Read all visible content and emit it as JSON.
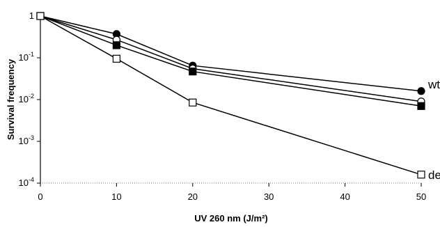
{
  "chart_data": {
    "type": "line",
    "title": "",
    "xlabel": "UV 260 nm (J/m²)",
    "ylabel": "Survival frequency",
    "x_scale": "linear",
    "y_scale": "log",
    "xlim": [
      0,
      50
    ],
    "ylim": [
      0.0001,
      1
    ],
    "x_ticks": [
      0,
      10,
      20,
      30,
      40,
      50
    ],
    "y_ticks": [
      {
        "value": 1,
        "base": "1",
        "exp": ""
      },
      {
        "value": 0.1,
        "base": "10",
        "exp": "-1"
      },
      {
        "value": 0.01,
        "base": "10",
        "exp": "-2"
      },
      {
        "value": 0.001,
        "base": "10",
        "exp": "-3"
      },
      {
        "value": 0.0001,
        "base": "10",
        "exp": "-4"
      }
    ],
    "grid": false,
    "legend": "none",
    "series": [
      {
        "name": "wt",
        "label_visible": true,
        "marker": "filled-circle",
        "x": [
          0,
          10,
          20,
          50
        ],
        "y": [
          1,
          0.37,
          0.065,
          0.016
        ]
      },
      {
        "name": "",
        "label_visible": false,
        "marker": "open-circle",
        "x": [
          0,
          10,
          20,
          50
        ],
        "y": [
          1,
          0.27,
          0.055,
          0.009
        ]
      },
      {
        "name": "",
        "label_visible": false,
        "marker": "filled-square",
        "x": [
          0,
          10,
          20,
          50
        ],
        "y": [
          1,
          0.2,
          0.047,
          0.007
        ]
      },
      {
        "name": "deoB",
        "label_visible": true,
        "marker": "open-square",
        "x": [
          0,
          10,
          20,
          50
        ],
        "y": [
          1,
          0.095,
          0.0085,
          0.00016
        ]
      }
    ]
  }
}
